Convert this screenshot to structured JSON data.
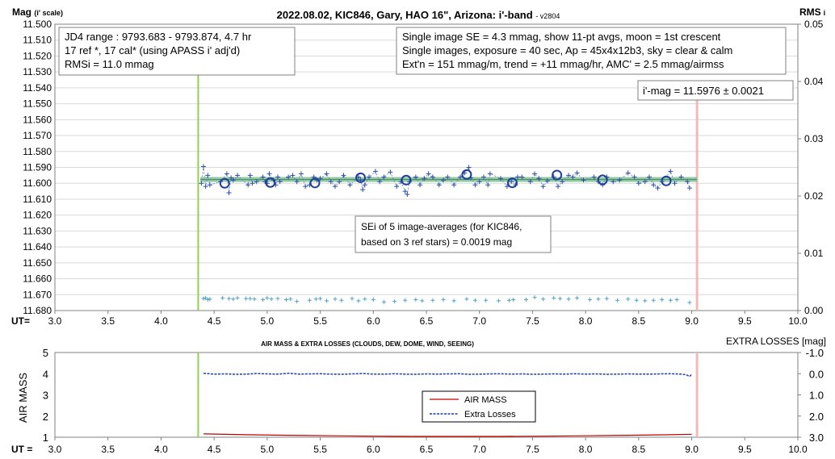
{
  "chart_data": [
    {
      "type": "scatter",
      "title": "2022.08.02, KIC846, Gary, HAO 16\", Arizona: i'-band",
      "version": "- v2804",
      "ylabel_main": "Mag",
      "ylabel_suffix": "(i' scale)",
      "y2label_main": "RMS",
      "y2label_suffix": "i",
      "xlabel": "UT=",
      "xlim": [
        3.0,
        10.0
      ],
      "ylim": [
        11.68,
        11.5
      ],
      "y2lim": [
        0.0,
        0.05
      ],
      "x_ticks": [
        "3.0",
        "3.5",
        "4.0",
        "4.5",
        "5.0",
        "5.5",
        "6.0",
        "6.5",
        "7.0",
        "7.5",
        "8.0",
        "8.5",
        "9.0",
        "9.5",
        "10.0"
      ],
      "y_ticks": [
        "11.500",
        "11.510",
        "11.520",
        "11.530",
        "11.540",
        "11.550",
        "11.560",
        "11.570",
        "11.580",
        "11.590",
        "11.600",
        "11.610",
        "11.620",
        "11.630",
        "11.640",
        "11.650",
        "11.660",
        "11.670",
        "11.680"
      ],
      "y2_ticks": [
        "0.00",
        "0.01",
        "0.02",
        "0.03",
        "0.04",
        "0.05"
      ],
      "start_line_x": 4.35,
      "end_line_x": 9.05,
      "mean_mag": 11.5976,
      "fit_x": [
        4.37,
        9.05
      ],
      "annotations": {
        "box1": [
          "JD4 range : 9793.683 - 9793.874, 4.7  hr",
          "17 ref *, 17 cal* (using APASS i' adj'd)",
          "RMSi = 11.0 mmag"
        ],
        "box2": [
          "Single image SE = 4.3 mmag, show 11-pt avgs, moon = 1st crescent",
          "Single images, exposure = 40 sec, Ap = 45x4x12b3, sky = clear & calm",
          "Ext'n = 151 mmag/m, trend = +11 mmag/hr, AMC' = 2.5 mmag/airmss"
        ],
        "box3": [
          "i'-mag = 11.5976 ± 0.0021"
        ],
        "box4": [
          "SEi of 5 image-averages (for KIC846,",
          "based on 3 ref stars) = 0.0019 mag"
        ]
      },
      "averages": {
        "x": [
          4.6,
          5.03,
          5.45,
          5.88,
          6.31,
          6.88,
          7.31,
          7.73,
          8.16,
          8.76
        ],
        "y": [
          11.6,
          11.5995,
          11.5998,
          11.5965,
          11.598,
          11.5945,
          11.5997,
          11.5948,
          11.5978,
          11.5985
        ]
      },
      "singles": {
        "x": [
          4.38,
          4.4,
          4.42,
          4.44,
          4.46,
          4.56,
          4.62,
          4.64,
          4.66,
          4.68,
          4.72,
          4.82,
          4.84,
          4.86,
          4.9,
          4.96,
          4.98,
          5.0,
          5.02,
          5.06,
          5.08,
          5.1,
          5.12,
          5.2,
          5.24,
          5.28,
          5.32,
          5.36,
          5.4,
          5.44,
          5.47,
          5.5,
          5.56,
          5.6,
          5.64,
          5.68,
          5.72,
          5.78,
          5.86,
          5.88,
          5.9,
          5.92,
          5.96,
          6.02,
          6.06,
          6.1,
          6.16,
          6.22,
          6.26,
          6.3,
          6.32,
          6.34,
          6.4,
          6.44,
          6.48,
          6.52,
          6.56,
          6.62,
          6.66,
          6.7,
          6.76,
          6.82,
          6.86,
          6.9,
          6.92,
          6.96,
          7.0,
          7.04,
          7.08,
          7.1,
          7.2,
          7.26,
          7.3,
          7.34,
          7.36,
          7.4,
          7.48,
          7.52,
          7.56,
          7.6,
          7.64,
          7.7,
          7.74,
          7.78,
          7.84,
          7.88,
          7.92,
          7.98,
          8.08,
          8.12,
          8.16,
          8.2,
          8.26,
          8.32,
          8.4,
          8.46,
          8.5,
          8.56,
          8.6,
          8.64,
          8.68,
          8.72,
          8.8,
          8.84,
          8.9,
          8.96,
          8.98
        ],
        "y": [
          11.6,
          11.5895,
          11.602,
          11.595,
          11.601,
          11.599,
          11.594,
          11.606,
          11.5965,
          11.598,
          11.595,
          11.601,
          11.595,
          11.6,
          11.599,
          11.596,
          11.599,
          11.6,
          11.594,
          11.598,
          11.601,
          11.596,
          11.599,
          11.596,
          11.595,
          11.599,
          11.594,
          11.602,
          11.601,
          11.596,
          11.598,
          11.597,
          11.594,
          11.599,
          11.602,
          11.599,
          11.595,
          11.601,
          11.596,
          11.598,
          11.604,
          11.601,
          11.596,
          11.5925,
          11.599,
          11.596,
          11.593,
          11.602,
          11.599,
          11.605,
          11.607,
          11.599,
          11.596,
          11.601,
          11.597,
          11.594,
          11.596,
          11.601,
          11.598,
          11.596,
          11.601,
          11.596,
          11.5935,
          11.59,
          11.5965,
          11.601,
          11.599,
          11.596,
          11.601,
          11.594,
          11.597,
          11.602,
          11.599,
          11.601,
          11.596,
          11.596,
          11.599,
          11.594,
          11.597,
          11.602,
          11.5985,
          11.596,
          11.602,
          11.599,
          11.595,
          11.596,
          11.5935,
          11.598,
          11.596,
          11.599,
          11.601,
          11.596,
          11.599,
          11.598,
          11.5935,
          11.596,
          11.6,
          11.599,
          11.596,
          11.601,
          11.603,
          11.599,
          11.5925,
          11.6,
          11.596,
          11.599,
          11.603
        ]
      },
      "rms": {
        "x": [
          4.4,
          4.42,
          4.44,
          4.46,
          4.58,
          4.64,
          4.68,
          4.72,
          4.8,
          4.84,
          4.88,
          4.96,
          5.0,
          5.04,
          5.1,
          5.18,
          5.22,
          5.28,
          5.4,
          5.46,
          5.5,
          5.56,
          5.64,
          5.7,
          5.8,
          5.86,
          5.92,
          6.0,
          6.1,
          6.2,
          6.3,
          6.4,
          6.46,
          6.56,
          6.66,
          6.76,
          6.88,
          6.96,
          7.06,
          7.18,
          7.28,
          7.32,
          7.44,
          7.52,
          7.6,
          7.7,
          7.76,
          7.84,
          7.92,
          8.04,
          8.12,
          8.2,
          8.3,
          8.4,
          8.48,
          8.56,
          8.64,
          8.72,
          8.8,
          8.86,
          8.98
        ],
        "y": [
          0.0021,
          0.0022,
          0.0019,
          0.002,
          0.0022,
          0.0021,
          0.002,
          0.0022,
          0.0021,
          0.0021,
          0.002,
          0.0019,
          0.0022,
          0.002,
          0.0021,
          0.0019,
          0.002,
          0.0016,
          0.0018,
          0.002,
          0.0021,
          0.0017,
          0.002,
          0.0018,
          0.0021,
          0.0017,
          0.002,
          0.0019,
          0.0015,
          0.0016,
          0.0018,
          0.0019,
          0.0017,
          0.0018,
          0.0019,
          0.0017,
          0.002,
          0.0018,
          0.0018,
          0.0017,
          0.0018,
          0.0019,
          0.0019,
          0.0023,
          0.002,
          0.0022,
          0.0021,
          0.002,
          0.0022,
          0.0019,
          0.002,
          0.0021,
          0.0018,
          0.002,
          0.0018,
          0.0017,
          0.0018,
          0.0019,
          0.0018,
          0.0019,
          0.0014
        ]
      }
    },
    {
      "type": "line",
      "title": "AIR MASS & EXTRA LOSSES (CLOUDS, DEW, DOME, WIND, SEEING)",
      "ylabel": "AIR MASS",
      "y2label": "EXTRA LOSSES [mag]",
      "xlabel": "UT =",
      "xlim": [
        3.0,
        10.0
      ],
      "ylim": [
        1,
        5
      ],
      "y2lim": [
        3.0,
        -1.0
      ],
      "x_ticks": [
        "3.0",
        "3.5",
        "4.0",
        "4.5",
        "5.0",
        "5.5",
        "6.0",
        "6.5",
        "7.0",
        "7.5",
        "8.0",
        "8.5",
        "9.0",
        "9.5",
        "10.0"
      ],
      "y_ticks": [
        "1",
        "2",
        "3",
        "4",
        "5"
      ],
      "y2_ticks": [
        "3.0",
        "2.0",
        "1.0",
        "0.0",
        "-1.0"
      ],
      "legend": {
        "placement": "center",
        "entries": [
          "AIR MASS",
          "Extra Losses"
        ]
      },
      "series": [
        {
          "name": "AIR MASS",
          "color": "#c00000",
          "x": [
            4.4,
            4.8,
            5.2,
            5.6,
            6.0,
            6.4,
            6.8,
            7.2,
            7.6,
            8.0,
            8.4,
            8.8,
            9.0
          ],
          "y": [
            1.16,
            1.12,
            1.09,
            1.07,
            1.05,
            1.04,
            1.04,
            1.04,
            1.05,
            1.07,
            1.09,
            1.12,
            1.14
          ]
        },
        {
          "name": "Extra Losses",
          "color": "#1f3f9f",
          "x": [
            4.4,
            4.45,
            4.5,
            4.6,
            4.7,
            4.8,
            4.9,
            5.0,
            5.1,
            5.2,
            5.3,
            5.4,
            5.5,
            5.6,
            5.7,
            5.8,
            5.9,
            6.0,
            6.1,
            6.2,
            6.3,
            6.4,
            6.5,
            6.6,
            6.7,
            6.8,
            6.9,
            7.0,
            7.1,
            7.2,
            7.3,
            7.4,
            7.5,
            7.6,
            7.7,
            7.8,
            7.9,
            8.0,
            8.1,
            8.2,
            8.3,
            8.4,
            8.5,
            8.6,
            8.7,
            8.8,
            8.9,
            8.95,
            8.98,
            9.0
          ],
          "y": [
            -0.02,
            0.0,
            0.02,
            0.01,
            0.03,
            0.02,
            -0.01,
            0.01,
            0.02,
            -0.02,
            0.02,
            0.01,
            0.0,
            0.02,
            0.03,
            0.01,
            -0.01,
            0.02,
            0.02,
            0.0,
            0.02,
            0.03,
            0.01,
            0.02,
            0.01,
            0.0,
            0.03,
            0.02,
            0.01,
            0.0,
            0.02,
            0.01,
            0.03,
            0.02,
            0.01,
            0.02,
            0.0,
            0.02,
            0.01,
            0.03,
            0.02,
            0.01,
            0.02,
            0.02,
            0.01,
            0.0,
            0.02,
            0.05,
            0.13,
            0.03
          ]
        }
      ],
      "start_line_x": 4.35,
      "end_line_x": 9.05
    }
  ]
}
